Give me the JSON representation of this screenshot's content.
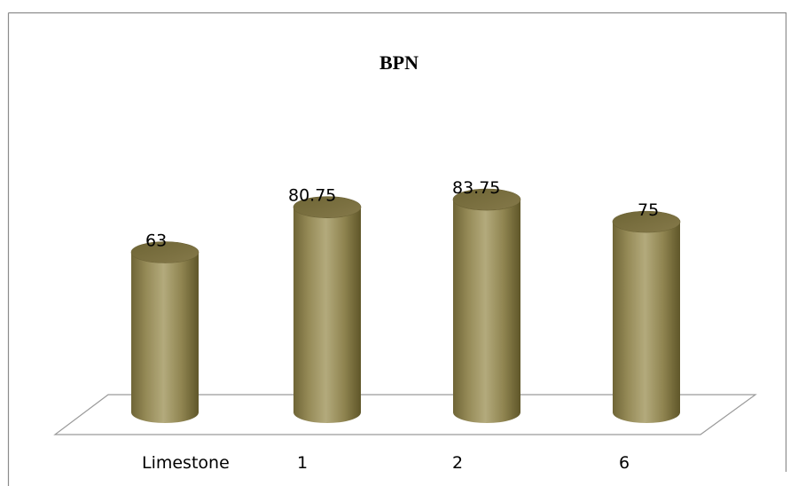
{
  "chart_data": {
    "type": "bar",
    "title": "BPN",
    "categories": [
      "Limestone",
      "1",
      "2",
      "6"
    ],
    "values": [
      63,
      80.75,
      83.75,
      75
    ],
    "value_labels": [
      "63",
      "80.75",
      "83.75",
      "75"
    ],
    "xlabel": "",
    "ylabel": "",
    "grid": false,
    "legend": "none",
    "bar_color": "#8e8452",
    "bar_style": "3d-cylinder"
  }
}
